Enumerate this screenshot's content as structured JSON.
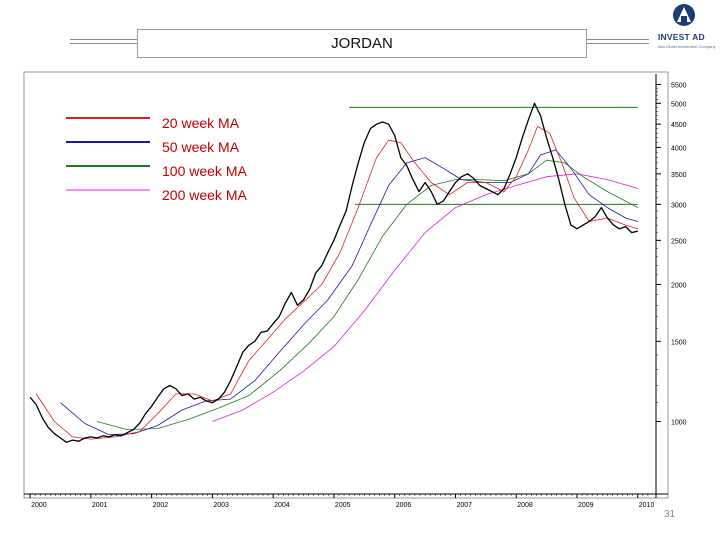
{
  "header": {
    "title": "JORDAN",
    "logo_name": "INVEST AD",
    "logo_tagline": "Abu Dhabi Investment Company"
  },
  "page_number": "31",
  "colors": {
    "price": "#000000",
    "ma20": "#e02020",
    "ma50": "#1a1aa0",
    "ma100": "#207a20",
    "ma200": "#e020e0",
    "levels": "#207a20",
    "brand": "#1d3d73"
  },
  "chart_data": {
    "type": "line",
    "title": "JORDAN",
    "xlabel": "",
    "ylabel": "",
    "y_scale": "log",
    "ylim": [
      700,
      5800
    ],
    "xlim": [
      1999.9,
      2010.3
    ],
    "x_ticks": [
      "2000",
      "2001",
      "2002",
      "2003",
      "2004",
      "2005",
      "2006",
      "2007",
      "2008",
      "2009",
      "2010"
    ],
    "y_ticks": [
      "5500",
      "5000",
      "4500",
      "4000",
      "3500",
      "3000",
      "2500",
      "2000",
      "1500",
      "1000"
    ],
    "legend": {
      "placement": "top-left",
      "entries": [
        "20 week MA",
        "50 week MA",
        "100 week MA",
        "200 week MA"
      ]
    },
    "series": [
      {
        "name": "",
        "values": [
          [
            2000.0,
            1130
          ],
          [
            2000.1,
            1090
          ],
          [
            2000.2,
            1020
          ],
          [
            2000.3,
            970
          ],
          [
            2000.4,
            940
          ],
          [
            2000.5,
            920
          ],
          [
            2000.6,
            900
          ],
          [
            2000.7,
            910
          ],
          [
            2000.8,
            905
          ],
          [
            2000.9,
            920
          ],
          [
            2001.0,
            925
          ],
          [
            2001.1,
            920
          ],
          [
            2001.2,
            930
          ],
          [
            2001.3,
            925
          ],
          [
            2001.4,
            935
          ],
          [
            2001.5,
            930
          ],
          [
            2001.6,
            945
          ],
          [
            2001.7,
            960
          ],
          [
            2001.8,
            990
          ],
          [
            2001.9,
            1040
          ],
          [
            2002.0,
            1080
          ],
          [
            2002.1,
            1130
          ],
          [
            2002.2,
            1180
          ],
          [
            2002.3,
            1200
          ],
          [
            2002.4,
            1180
          ],
          [
            2002.5,
            1140
          ],
          [
            2002.6,
            1150
          ],
          [
            2002.7,
            1120
          ],
          [
            2002.8,
            1130
          ],
          [
            2002.9,
            1110
          ],
          [
            2003.0,
            1100
          ],
          [
            2003.1,
            1120
          ],
          [
            2003.2,
            1160
          ],
          [
            2003.3,
            1230
          ],
          [
            2003.4,
            1320
          ],
          [
            2003.5,
            1420
          ],
          [
            2003.6,
            1470
          ],
          [
            2003.7,
            1500
          ],
          [
            2003.8,
            1570
          ],
          [
            2003.9,
            1580
          ],
          [
            2004.0,
            1640
          ],
          [
            2004.1,
            1700
          ],
          [
            2004.2,
            1820
          ],
          [
            2004.3,
            1920
          ],
          [
            2004.4,
            1800
          ],
          [
            2004.5,
            1850
          ],
          [
            2004.6,
            1950
          ],
          [
            2004.7,
            2120
          ],
          [
            2004.8,
            2200
          ],
          [
            2004.9,
            2350
          ],
          [
            2005.0,
            2500
          ],
          [
            2005.1,
            2700
          ],
          [
            2005.2,
            2900
          ],
          [
            2005.3,
            3300
          ],
          [
            2005.4,
            3700
          ],
          [
            2005.5,
            4100
          ],
          [
            2005.6,
            4400
          ],
          [
            2005.7,
            4500
          ],
          [
            2005.8,
            4550
          ],
          [
            2005.9,
            4500
          ],
          [
            2006.0,
            4250
          ],
          [
            2006.1,
            3800
          ],
          [
            2006.2,
            3650
          ],
          [
            2006.3,
            3400
          ],
          [
            2006.4,
            3200
          ],
          [
            2006.5,
            3350
          ],
          [
            2006.6,
            3200
          ],
          [
            2006.7,
            3000
          ],
          [
            2006.8,
            3050
          ],
          [
            2006.9,
            3200
          ],
          [
            2007.0,
            3350
          ],
          [
            2007.1,
            3450
          ],
          [
            2007.2,
            3500
          ],
          [
            2007.3,
            3420
          ],
          [
            2007.4,
            3300
          ],
          [
            2007.5,
            3250
          ],
          [
            2007.6,
            3200
          ],
          [
            2007.7,
            3150
          ],
          [
            2007.8,
            3250
          ],
          [
            2007.9,
            3500
          ],
          [
            2008.0,
            3800
          ],
          [
            2008.1,
            4200
          ],
          [
            2008.2,
            4600
          ],
          [
            2008.3,
            5000
          ],
          [
            2008.4,
            4700
          ],
          [
            2008.5,
            4200
          ],
          [
            2008.6,
            3800
          ],
          [
            2008.7,
            3400
          ],
          [
            2008.8,
            3000
          ],
          [
            2008.9,
            2700
          ],
          [
            2009.0,
            2650
          ],
          [
            2009.1,
            2700
          ],
          [
            2009.2,
            2750
          ],
          [
            2009.3,
            2820
          ],
          [
            2009.4,
            2950
          ],
          [
            2009.5,
            2800
          ],
          [
            2009.6,
            2700
          ],
          [
            2009.7,
            2650
          ],
          [
            2009.8,
            2680
          ],
          [
            2009.9,
            2600
          ],
          [
            2010.0,
            2620
          ]
        ]
      },
      {
        "name": "20 week MA",
        "values": [
          [
            2000.1,
            1150
          ],
          [
            2000.4,
            1000
          ],
          [
            2000.7,
            925
          ],
          [
            2001.0,
            915
          ],
          [
            2001.4,
            925
          ],
          [
            2001.8,
            950
          ],
          [
            2002.1,
            1040
          ],
          [
            2002.4,
            1150
          ],
          [
            2002.7,
            1150
          ],
          [
            2003.0,
            1110
          ],
          [
            2003.3,
            1150
          ],
          [
            2003.6,
            1360
          ],
          [
            2003.9,
            1510
          ],
          [
            2004.2,
            1680
          ],
          [
            2004.5,
            1830
          ],
          [
            2004.8,
            2000
          ],
          [
            2005.1,
            2350
          ],
          [
            2005.4,
            2950
          ],
          [
            2005.7,
            3800
          ],
          [
            2005.9,
            4150
          ],
          [
            2006.1,
            4100
          ],
          [
            2006.3,
            3750
          ],
          [
            2006.6,
            3350
          ],
          [
            2006.9,
            3150
          ],
          [
            2007.2,
            3350
          ],
          [
            2007.5,
            3350
          ],
          [
            2007.8,
            3200
          ],
          [
            2008.0,
            3450
          ],
          [
            2008.2,
            3950
          ],
          [
            2008.35,
            4450
          ],
          [
            2008.55,
            4300
          ],
          [
            2008.75,
            3700
          ],
          [
            2008.95,
            3100
          ],
          [
            2009.2,
            2750
          ],
          [
            2009.5,
            2800
          ],
          [
            2009.8,
            2700
          ],
          [
            2010.0,
            2650
          ]
        ]
      },
      {
        "name": "50 week MA",
        "values": [
          [
            2000.5,
            1100
          ],
          [
            2000.9,
            990
          ],
          [
            2001.3,
            935
          ],
          [
            2001.7,
            940
          ],
          [
            2002.1,
            980
          ],
          [
            2002.5,
            1060
          ],
          [
            2002.9,
            1110
          ],
          [
            2003.3,
            1120
          ],
          [
            2003.7,
            1230
          ],
          [
            2004.1,
            1420
          ],
          [
            2004.5,
            1630
          ],
          [
            2004.9,
            1850
          ],
          [
            2005.3,
            2200
          ],
          [
            2005.6,
            2700
          ],
          [
            2005.9,
            3300
          ],
          [
            2006.2,
            3700
          ],
          [
            2006.5,
            3800
          ],
          [
            2006.8,
            3600
          ],
          [
            2007.1,
            3400
          ],
          [
            2007.5,
            3350
          ],
          [
            2007.9,
            3350
          ],
          [
            2008.2,
            3500
          ],
          [
            2008.4,
            3850
          ],
          [
            2008.65,
            3950
          ],
          [
            2008.9,
            3600
          ],
          [
            2009.2,
            3150
          ],
          [
            2009.5,
            2950
          ],
          [
            2009.8,
            2800
          ],
          [
            2010.0,
            2750
          ]
        ]
      },
      {
        "name": "100 week MA",
        "values": [
          [
            2001.1,
            1000
          ],
          [
            2001.6,
            960
          ],
          [
            2002.1,
            965
          ],
          [
            2002.6,
            1010
          ],
          [
            2003.1,
            1070
          ],
          [
            2003.6,
            1140
          ],
          [
            2004.1,
            1290
          ],
          [
            2004.6,
            1490
          ],
          [
            2005.0,
            1700
          ],
          [
            2005.4,
            2050
          ],
          [
            2005.8,
            2550
          ],
          [
            2006.2,
            3000
          ],
          [
            2006.6,
            3300
          ],
          [
            2007.0,
            3400
          ],
          [
            2007.4,
            3400
          ],
          [
            2007.8,
            3380
          ],
          [
            2008.2,
            3500
          ],
          [
            2008.5,
            3750
          ],
          [
            2008.8,
            3700
          ],
          [
            2009.1,
            3450
          ],
          [
            2009.5,
            3200
          ],
          [
            2009.8,
            3050
          ],
          [
            2010.0,
            2950
          ]
        ]
      },
      {
        "name": "200 week MA",
        "values": [
          [
            2003.0,
            1000
          ],
          [
            2003.5,
            1060
          ],
          [
            2004.0,
            1160
          ],
          [
            2004.5,
            1290
          ],
          [
            2005.0,
            1460
          ],
          [
            2005.5,
            1750
          ],
          [
            2006.0,
            2150
          ],
          [
            2006.5,
            2600
          ],
          [
            2007.0,
            2950
          ],
          [
            2007.5,
            3150
          ],
          [
            2008.0,
            3300
          ],
          [
            2008.5,
            3450
          ],
          [
            2009.0,
            3500
          ],
          [
            2009.5,
            3400
          ],
          [
            2010.0,
            3250
          ]
        ]
      }
    ],
    "levels": [
      {
        "y": 4900,
        "x": [
          2005.25,
          2010.0
        ]
      },
      {
        "y": 3000,
        "x": [
          2005.35,
          2010.0
        ]
      }
    ]
  }
}
